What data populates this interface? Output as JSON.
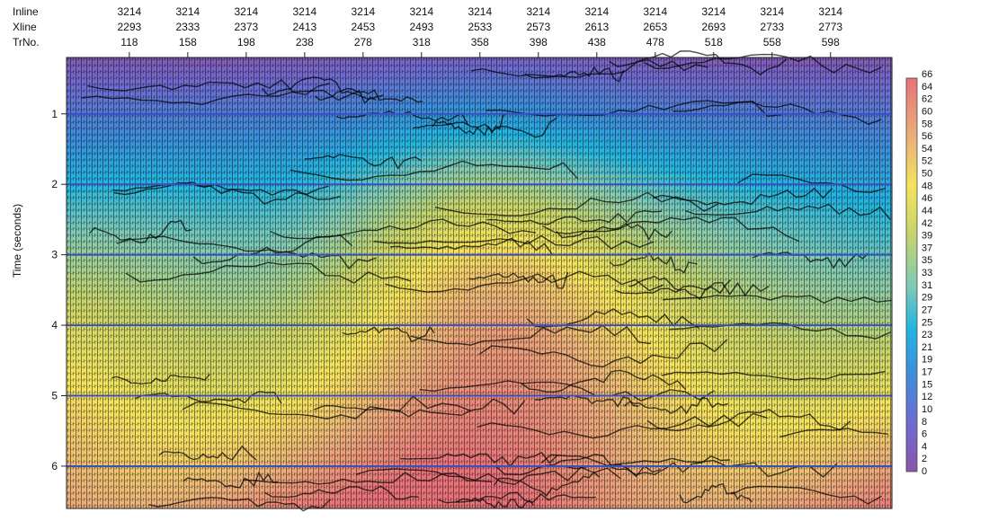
{
  "chart_data": {
    "type": "heatmap",
    "title": "",
    "ylabel": "Time (seconds)",
    "header_labels": [
      "Inline",
      "Xline",
      "TrNo."
    ],
    "trace_columns": [
      {
        "inline": "3214",
        "xline": "2293",
        "trno": "118"
      },
      {
        "inline": "3214",
        "xline": "2333",
        "trno": "158"
      },
      {
        "inline": "3214",
        "xline": "2373",
        "trno": "198"
      },
      {
        "inline": "3214",
        "xline": "2413",
        "trno": "238"
      },
      {
        "inline": "3214",
        "xline": "2453",
        "trno": "278"
      },
      {
        "inline": "3214",
        "xline": "2493",
        "trno": "318"
      },
      {
        "inline": "3214",
        "xline": "2533",
        "trno": "358"
      },
      {
        "inline": "3214",
        "xline": "2573",
        "trno": "398"
      },
      {
        "inline": "3214",
        "xline": "2613",
        "trno": "438"
      },
      {
        "inline": "3214",
        "xline": "2653",
        "trno": "478"
      },
      {
        "inline": "3214",
        "xline": "2693",
        "trno": "518"
      },
      {
        "inline": "3214",
        "xline": "2733",
        "trno": "558"
      },
      {
        "inline": "3214",
        "xline": "2773",
        "trno": "598"
      }
    ],
    "trno_range": [
      75,
      640
    ],
    "y_ticks": [
      1,
      2,
      3,
      4,
      5,
      6
    ],
    "ylim": [
      0.2,
      6.6
    ],
    "grid_lines_at": [
      1,
      2,
      3,
      4,
      5,
      6
    ],
    "grid_color": "#3b4fc4",
    "colorbar": {
      "labels": [
        "66",
        "64",
        "62",
        "60",
        "58",
        "56",
        "54",
        "52",
        "50",
        "48",
        "46",
        "44",
        "42",
        "39",
        "37",
        "35",
        "33",
        "31",
        "29",
        "27",
        "25",
        "23",
        "21",
        "19",
        "17",
        "15",
        "12",
        "10",
        "8",
        "6",
        "4",
        "2",
        "0"
      ],
      "range": [
        0,
        66
      ],
      "stops": [
        {
          "value": 0,
          "color": "#8a55a8"
        },
        {
          "value": 8,
          "color": "#6f6bd0"
        },
        {
          "value": 17,
          "color": "#3c8fdc"
        },
        {
          "value": 24,
          "color": "#22b5e0"
        },
        {
          "value": 31,
          "color": "#7ec9b6"
        },
        {
          "value": 40,
          "color": "#c7d46a"
        },
        {
          "value": 48,
          "color": "#f4e35c"
        },
        {
          "value": 56,
          "color": "#eab07a"
        },
        {
          "value": 66,
          "color": "#e8727a"
        }
      ]
    }
  }
}
